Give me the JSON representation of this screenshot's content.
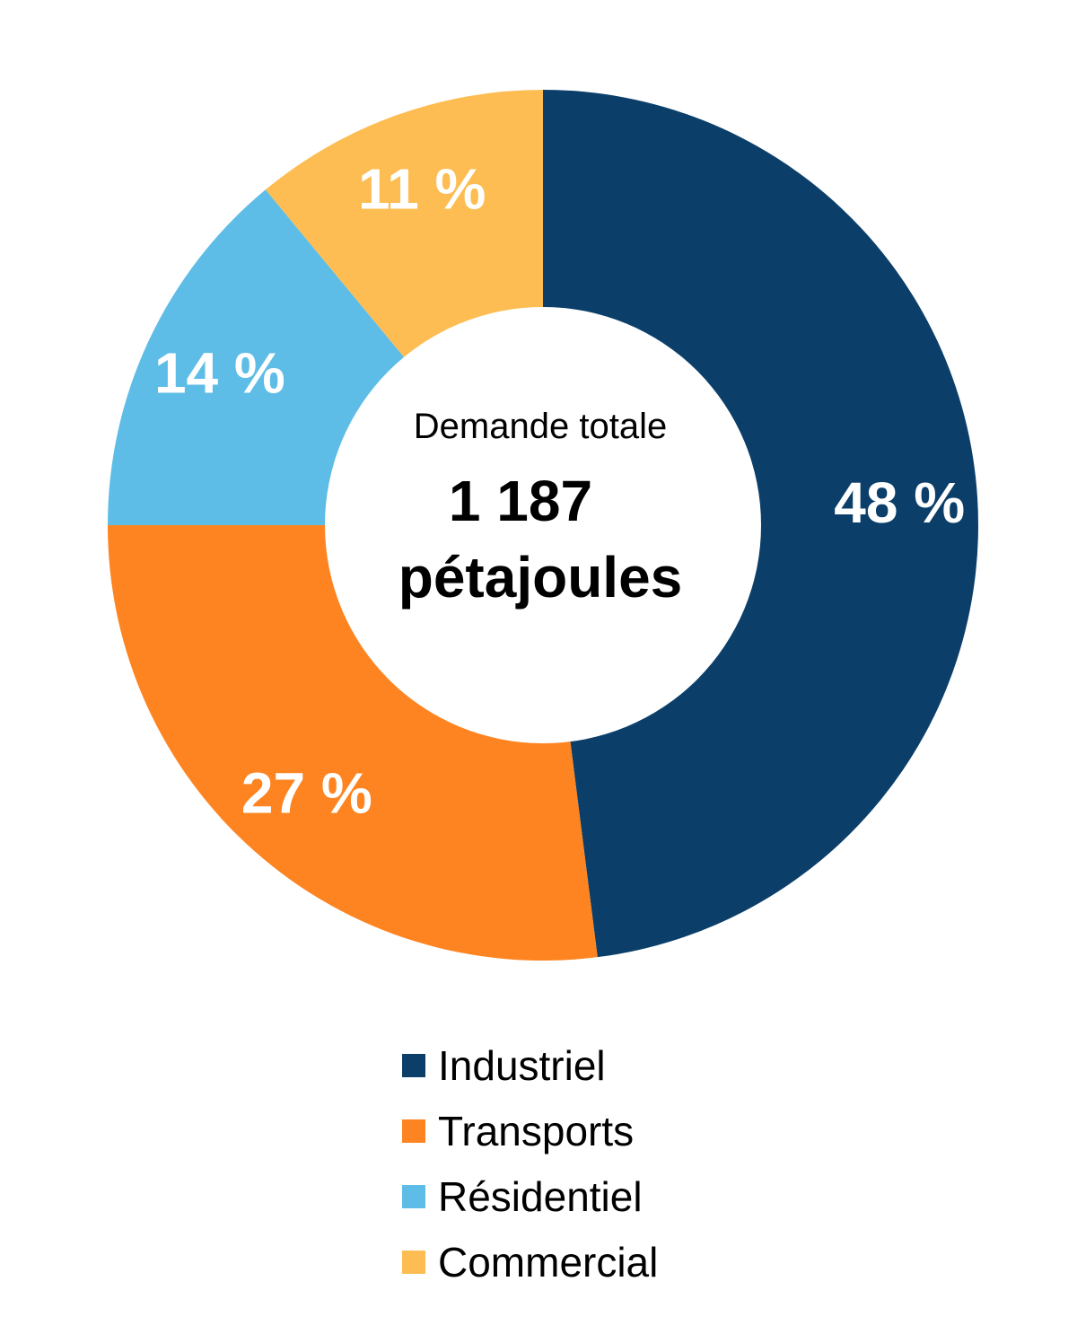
{
  "chart_data": {
    "type": "pie",
    "variant": "donut",
    "center": {
      "title": "Demande totale",
      "value_line1": "1 187",
      "value_line2": "pétajoules"
    },
    "slices": [
      {
        "name": "Industriel",
        "value": 48,
        "label": "48 %",
        "color": "#0b3f6a"
      },
      {
        "name": "Transports",
        "value": 27,
        "label": "27 %",
        "color": "#fd8420"
      },
      {
        "name": "Résidentiel",
        "value": 14,
        "label": "14 %",
        "color": "#5ebde6"
      },
      {
        "name": "Commercial",
        "value": 11,
        "label": "11 %",
        "color": "#fdbd52"
      }
    ],
    "legend_position": "bottom"
  }
}
